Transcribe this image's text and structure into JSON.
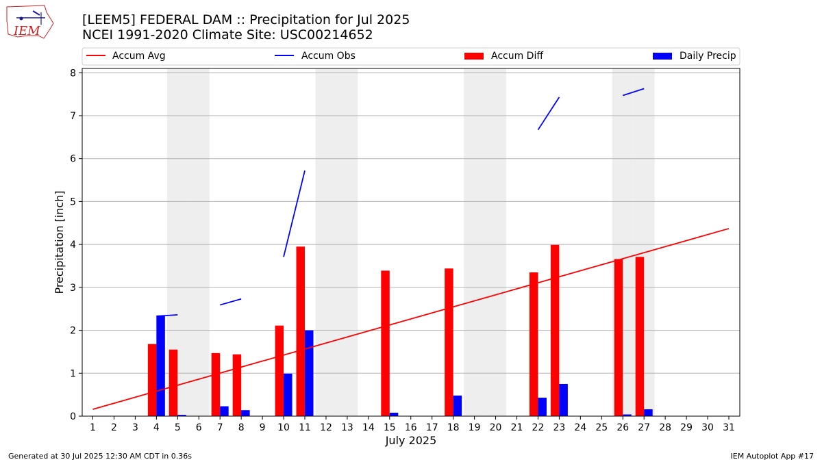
{
  "header": {
    "title_line1": "[LEEM5] FEDERAL DAM :: Precipitation for Jul 2025",
    "title_line2": "NCEI 1991-2020 Climate Site: USC00214652"
  },
  "logo": {
    "text": "IEM"
  },
  "legend": {
    "accum_avg": "Accum Avg",
    "accum_obs": "Accum Obs",
    "accum_diff": "Accum Diff",
    "daily_precip": "Daily Precip"
  },
  "footer": {
    "left": "Generated at 30 Jul 2025 12:30 AM CDT in 0.36s",
    "right": "IEM Autoplot App #17"
  },
  "colors": {
    "accum_avg": "#ff0000",
    "accum_obs": "#0000ff",
    "accum_diff": "#ff0000",
    "daily_precip": "#0000ff",
    "weekend_shade": "#eeeeee",
    "grid": "#b0b0b0"
  },
  "chart_data": {
    "type": "bar",
    "xlabel": "July 2025",
    "ylabel": "Precipitation [inch]",
    "ylim": [
      0,
      8.1
    ],
    "yticks": [
      0,
      1,
      2,
      3,
      4,
      5,
      6,
      7,
      8
    ],
    "days": [
      1,
      2,
      3,
      4,
      5,
      6,
      7,
      8,
      9,
      10,
      11,
      12,
      13,
      14,
      15,
      16,
      17,
      18,
      19,
      20,
      21,
      22,
      23,
      24,
      25,
      26,
      27,
      28,
      29,
      30,
      31
    ],
    "weekend_shaded_days": [
      5,
      6,
      12,
      13,
      19,
      20,
      26,
      27
    ],
    "grid": "horizontal",
    "legend_position": "top",
    "series": [
      {
        "name": "Accum Avg",
        "kind": "line",
        "points": [
          [
            1,
            0.16
          ],
          [
            31,
            4.37
          ]
        ]
      },
      {
        "name": "Accum Obs",
        "kind": "segments",
        "segments": [
          [
            [
              4,
              2.33
            ],
            [
              5,
              2.36
            ]
          ],
          [
            [
              7,
              2.59
            ],
            [
              8,
              2.73
            ]
          ],
          [
            [
              10,
              3.71
            ],
            [
              11,
              5.72
            ]
          ],
          [
            [
              22,
              6.67
            ],
            [
              23,
              7.43
            ]
          ],
          [
            [
              26,
              7.47
            ],
            [
              27,
              7.63
            ]
          ]
        ]
      },
      {
        "name": "Accum Diff",
        "kind": "bar",
        "values": [
          [
            4,
            1.68
          ],
          [
            5,
            1.55
          ],
          [
            7,
            1.47
          ],
          [
            8,
            1.44
          ],
          [
            10,
            2.11
          ],
          [
            11,
            3.95
          ],
          [
            15,
            3.39
          ],
          [
            18,
            3.44
          ],
          [
            22,
            3.35
          ],
          [
            23,
            3.99
          ],
          [
            26,
            3.66
          ],
          [
            27,
            3.71
          ]
        ]
      },
      {
        "name": "Daily Precip",
        "kind": "bar",
        "values": [
          [
            4,
            2.33
          ],
          [
            5,
            0.03
          ],
          [
            7,
            0.23
          ],
          [
            8,
            0.14
          ],
          [
            10,
            0.99
          ],
          [
            11,
            2.0
          ],
          [
            15,
            0.08
          ],
          [
            18,
            0.48
          ],
          [
            22,
            0.43
          ],
          [
            23,
            0.75
          ],
          [
            26,
            0.04
          ],
          [
            27,
            0.16
          ]
        ]
      }
    ]
  }
}
